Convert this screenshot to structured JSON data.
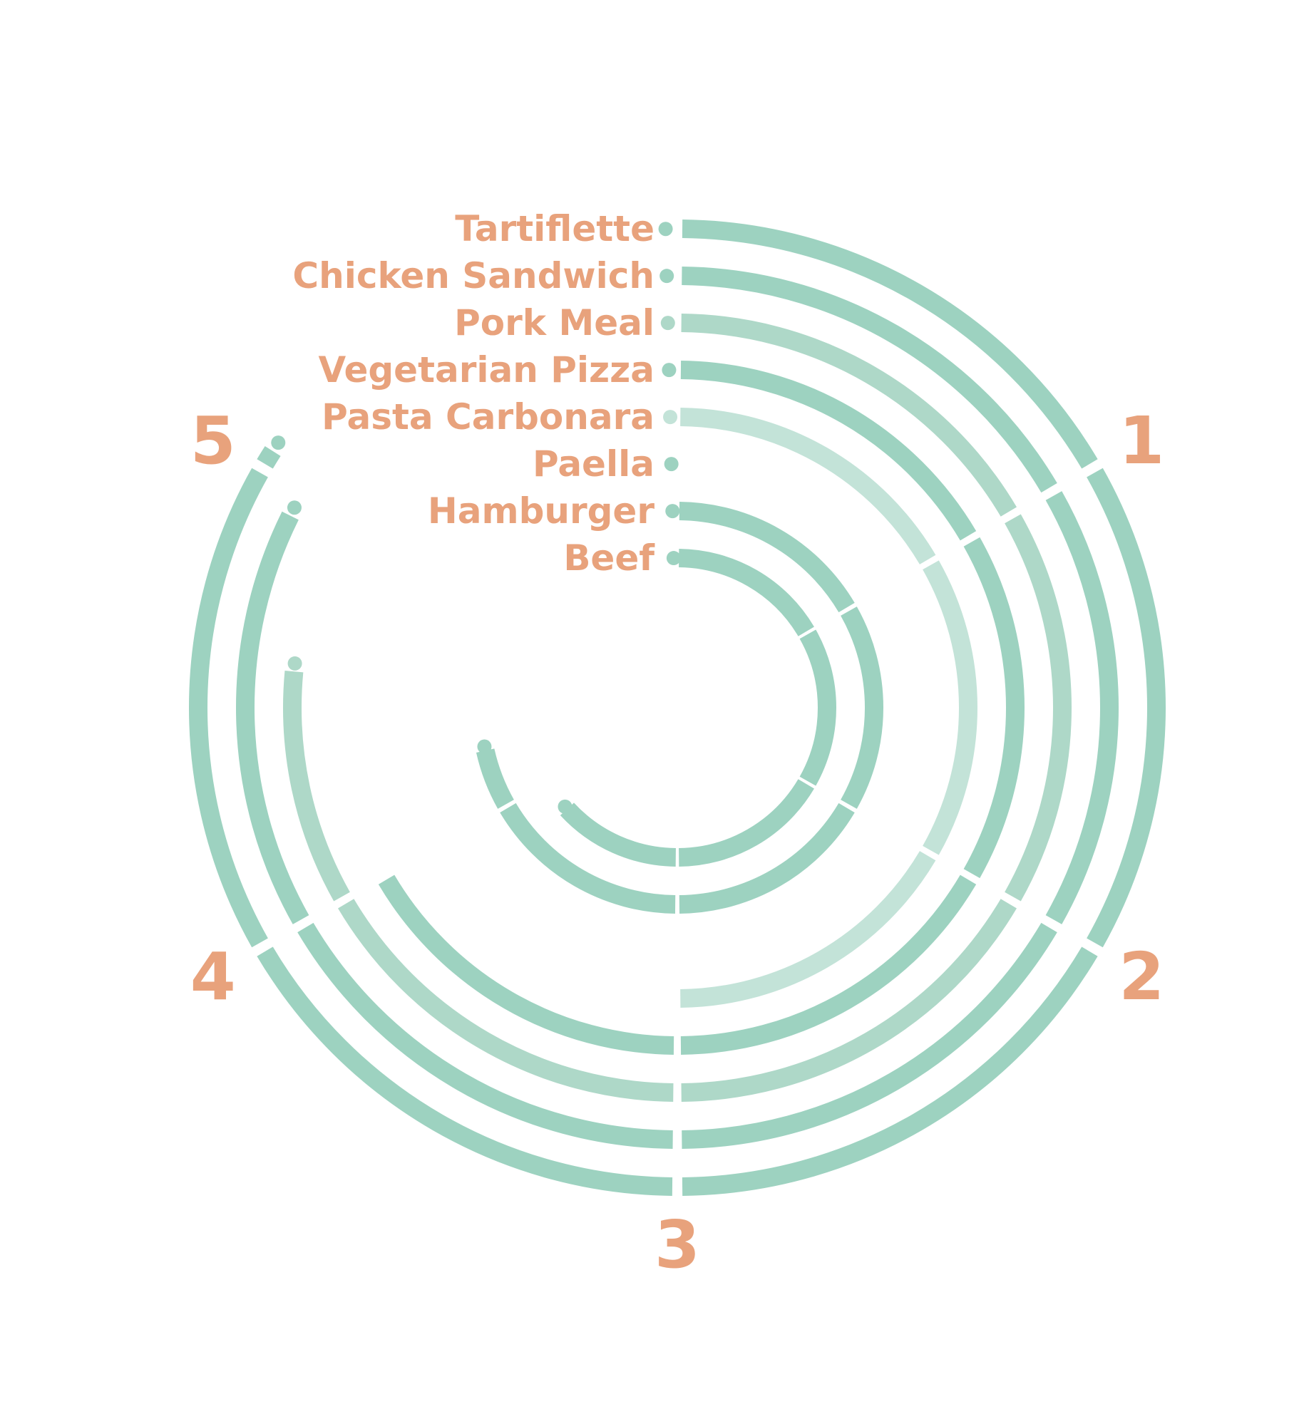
{
  "chart_data": {
    "type": "radial_bar",
    "scale_max": 6,
    "ticks": [
      "1",
      "2",
      "3",
      "4",
      "5"
    ],
    "categories": [
      "Tartiflette",
      "Chicken Sandwich",
      "Pork Meal",
      "Vegetarian Pizza",
      "Pasta Carbonara",
      "Paella",
      "Hamburger",
      "Beef"
    ],
    "values": [
      5.05,
      4.95,
      4.6,
      4.0,
      3.0,
      0.0,
      4.3,
      3.8
    ],
    "colors": {
      "label": "#E8A27C",
      "bars": [
        "#9DD2C0",
        "#9DD2C0",
        "#AED8C8",
        "#9DD2C0",
        "#C3E3D8",
        "#9DD2C0",
        "#9DD2C0",
        "#9DD2C0"
      ]
    }
  }
}
